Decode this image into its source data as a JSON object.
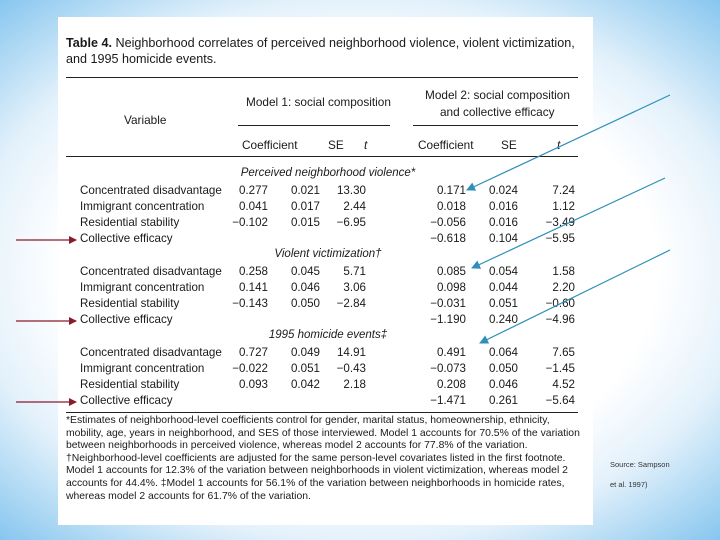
{
  "table": {
    "title_bold": "Table 4.",
    "title_text": "Neighborhood correlates of perceived neighborhood violence, violent victimization, and 1995 homicide events.",
    "header": {
      "variable": "Variable",
      "model1": "Model 1: social composition",
      "model2_line1": "Model 2: social composition",
      "model2_line2": "and collective efficacy",
      "coefficient": "Coefficient",
      "se": "SE",
      "t": "t"
    },
    "sections": [
      {
        "title": "Perceived neighborhood violence*",
        "rows": [
          {
            "variable": "Concentrated disadvantage",
            "m1_coef": "0.277",
            "m1_se": "0.021",
            "m1_t": "13.30",
            "m2_coef": "0.171",
            "m2_se": "0.024",
            "m2_t": "7.24"
          },
          {
            "variable": "Immigrant concentration",
            "m1_coef": "0.041",
            "m1_se": "0.017",
            "m1_t": "2.44",
            "m2_coef": "0.018",
            "m2_se": "0.016",
            "m2_t": "1.12"
          },
          {
            "variable": "Residential stability",
            "m1_coef": "−0.102",
            "m1_se": "0.015",
            "m1_t": "−6.95",
            "m2_coef": "−0.056",
            "m2_se": "0.016",
            "m2_t": "−3.49"
          },
          {
            "variable": "Collective efficacy",
            "m1_coef": "",
            "m1_se": "",
            "m1_t": "",
            "m2_coef": "−0.618",
            "m2_se": "0.104",
            "m2_t": "−5.95"
          }
        ]
      },
      {
        "title": "Violent victimization†",
        "rows": [
          {
            "variable": "Concentrated disadvantage",
            "m1_coef": "0.258",
            "m1_se": "0.045",
            "m1_t": "5.71",
            "m2_coef": "0.085",
            "m2_se": "0.054",
            "m2_t": "1.58"
          },
          {
            "variable": "Immigrant concentration",
            "m1_coef": "0.141",
            "m1_se": "0.046",
            "m1_t": "3.06",
            "m2_coef": "0.098",
            "m2_se": "0.044",
            "m2_t": "2.20"
          },
          {
            "variable": "Residential stability",
            "m1_coef": "−0.143",
            "m1_se": "0.050",
            "m1_t": "−2.84",
            "m2_coef": "−0.031",
            "m2_se": "0.051",
            "m2_t": "−0.60"
          },
          {
            "variable": "Collective efficacy",
            "m1_coef": "",
            "m1_se": "",
            "m1_t": "",
            "m2_coef": "−1.190",
            "m2_se": "0.240",
            "m2_t": "−4.96"
          }
        ]
      },
      {
        "title": "1995 homicide events‡",
        "rows": [
          {
            "variable": "Concentrated disadvantage",
            "m1_coef": "0.727",
            "m1_se": "0.049",
            "m1_t": "14.91",
            "m2_coef": "0.491",
            "m2_se": "0.064",
            "m2_t": "7.65"
          },
          {
            "variable": "Immigrant concentration",
            "m1_coef": "−0.022",
            "m1_se": "0.051",
            "m1_t": "−0.43",
            "m2_coef": "−0.073",
            "m2_se": "0.050",
            "m2_t": "−1.45"
          },
          {
            "variable": "Residential stability",
            "m1_coef": "0.093",
            "m1_se": "0.042",
            "m1_t": "2.18",
            "m2_coef": "0.208",
            "m2_se": "0.046",
            "m2_t": "4.52"
          },
          {
            "variable": "Collective efficacy",
            "m1_coef": "",
            "m1_se": "",
            "m1_t": "",
            "m2_coef": "−1.471",
            "m2_se": "0.261",
            "m2_t": "−5.64"
          }
        ]
      }
    ],
    "footnote": "*Estimates of neighborhood-level coefficients control for gender, marital status, homeownership, ethnicity, mobility, age, years in neighborhood, and SES of those interviewed. Model 1 accounts for 70.5% of the variation between neighborhoods in perceived violence, whereas model 2 accounts for 77.8% of the variation. †Neighborhood-level coefficients are adjusted for the same person-level covariates listed in the first footnote. Model 1 accounts for 12.3% of the variation between neighborhoods in violent victimization, whereas model 2 accounts for 44.4%. ‡Model 1 accounts for 56.1% of the variation between neighborhoods in homicide rates, whereas model 2 accounts for 61.7% of the variation."
  },
  "source": {
    "line1": "Source: Sampson",
    "line2": "et al. 1997)"
  },
  "annotations": {
    "left_arrow_color": "#8b1a2b",
    "right_arrow_color": "#2e8fb8"
  }
}
